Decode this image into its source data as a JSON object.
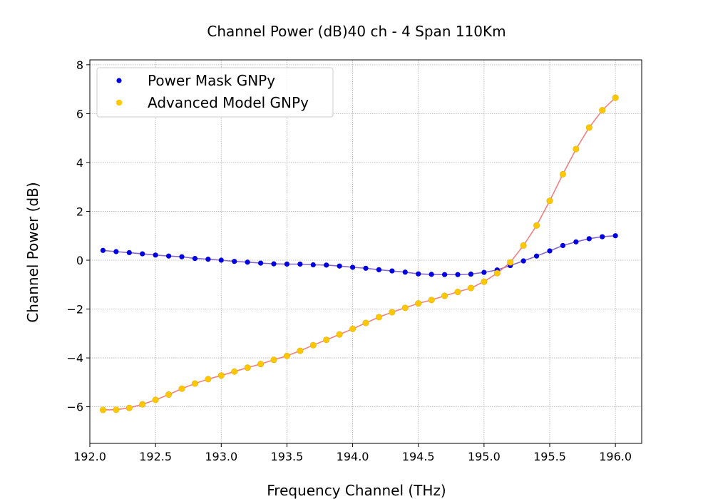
{
  "chart_data": {
    "type": "scatter",
    "title": "Channel Power (dB)40 ch - 4 Span 110Km",
    "xlabel": "Frequency Channel (THz)",
    "ylabel": "Channel Power (dB)",
    "xlim": [
      192.0,
      196.2
    ],
    "ylim": [
      -7.5,
      8.2
    ],
    "xticks": [
      "192.0",
      "192.5",
      "193.0",
      "193.5",
      "194.0",
      "194.5",
      "195.0",
      "195.5",
      "196.0"
    ],
    "yticks": [
      "−6",
      "−4",
      "−2",
      "0",
      "2",
      "4",
      "6",
      "8"
    ],
    "grid": true,
    "legend_position": "top-left",
    "x": [
      192.1,
      192.2,
      192.3,
      192.4,
      192.5,
      192.6,
      192.7,
      192.8,
      192.9,
      193.0,
      193.1,
      193.2,
      193.3,
      193.4,
      193.5,
      193.6,
      193.7,
      193.8,
      193.9,
      194.0,
      194.1,
      194.2,
      194.3,
      194.4,
      194.5,
      194.6,
      194.7,
      194.8,
      194.9,
      195.0,
      195.1,
      195.2,
      195.3,
      195.4,
      195.5,
      195.6,
      195.7,
      195.8,
      195.9,
      196.0
    ],
    "series": [
      {
        "name": "Power Mask GNPy",
        "marker_color": "#0000e0",
        "line_color": "#8a68c8",
        "values": [
          0.4,
          0.35,
          0.31,
          0.26,
          0.21,
          0.17,
          0.14,
          0.07,
          0.04,
          0.0,
          -0.05,
          -0.08,
          -0.12,
          -0.15,
          -0.16,
          -0.16,
          -0.19,
          -0.2,
          -0.24,
          -0.29,
          -0.33,
          -0.39,
          -0.44,
          -0.49,
          -0.56,
          -0.58,
          -0.59,
          -0.59,
          -0.57,
          -0.5,
          -0.4,
          -0.22,
          -0.03,
          0.17,
          0.38,
          0.6,
          0.75,
          0.88,
          0.96,
          1.0
        ]
      },
      {
        "name": "Advanced Model GNPy",
        "marker_color": "#ffc800",
        "line_color": "#f08080",
        "values": [
          -6.13,
          -6.12,
          -6.05,
          -5.9,
          -5.72,
          -5.5,
          -5.26,
          -5.05,
          -4.87,
          -4.72,
          -4.56,
          -4.4,
          -4.25,
          -4.08,
          -3.92,
          -3.71,
          -3.48,
          -3.26,
          -3.04,
          -2.81,
          -2.57,
          -2.33,
          -2.13,
          -1.95,
          -1.77,
          -1.63,
          -1.46,
          -1.3,
          -1.14,
          -0.88,
          -0.53,
          -0.09,
          0.6,
          1.42,
          2.43,
          3.52,
          4.55,
          5.43,
          6.14,
          6.65
        ]
      }
    ]
  }
}
